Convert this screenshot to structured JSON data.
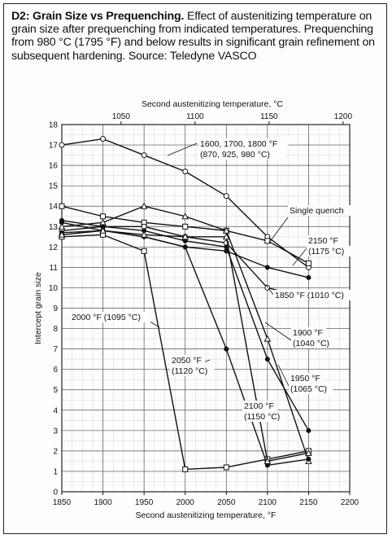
{
  "caption": {
    "lead": "D2: Grain Size vs Prequenching.",
    "body": "Effect of austenitizing temperature on grain size after prequenching from indicated temperatures. Prequenching from 980 °C (1795 °F) and below results in significant grain refinement on subsequent hardening. Source: Teledyne VASCO"
  },
  "chart_data": {
    "type": "line",
    "xlabel": "Second austenitizing temperature, °F",
    "ylabel": "Intercept grain size",
    "x2label": "Second austenitizing temperature, °C",
    "xlim": [
      1850,
      2200
    ],
    "ylim": [
      0,
      18
    ],
    "xticks": [
      1850,
      1900,
      1950,
      2000,
      2050,
      2100,
      2150,
      2200
    ],
    "yticks": [
      0,
      1,
      2,
      3,
      4,
      5,
      6,
      7,
      8,
      9,
      10,
      11,
      12,
      13,
      14,
      15,
      16,
      17,
      18
    ],
    "x2ticks": [
      1050,
      1100,
      1150,
      1200
    ],
    "grid": true,
    "series": [
      {
        "name": "1600, 1700, 1800 °F (870, 925, 980 °C)",
        "marker": "circle-open",
        "x": [
          1850,
          1900,
          1950,
          2000,
          2050,
          2100,
          2150
        ],
        "y": [
          17.0,
          17.3,
          16.5,
          15.7,
          14.5,
          12.5,
          11.0
        ]
      },
      {
        "name": "Single quench",
        "marker": "square-open",
        "x": [
          1850,
          1900,
          1950,
          2000,
          2050,
          2100,
          2150
        ],
        "y": [
          14.0,
          13.5,
          13.2,
          13.0,
          12.8,
          12.3,
          11.2
        ]
      },
      {
        "name": "2150 °F (1175 °C)",
        "marker": "circle-filled",
        "x": [
          1850,
          1900,
          1950,
          2000,
          2050,
          2100,
          2150
        ],
        "y": [
          13.2,
          12.8,
          12.5,
          12.0,
          11.8,
          11.0,
          10.5
        ]
      },
      {
        "name": "1850 °F (1010 °C)",
        "marker": "circle-open",
        "x": [
          1850,
          1900,
          1950,
          2000,
          2050,
          2100,
          2150
        ],
        "y": [
          12.8,
          13.0,
          13.0,
          12.5,
          12.2,
          10.0,
          9.5
        ]
      },
      {
        "name": "1900 °F (1040 °C)",
        "marker": "triangle-open",
        "x": [
          1850,
          1900,
          1950,
          2000,
          2050,
          2100,
          2150
        ],
        "y": [
          13.0,
          13.2,
          14.0,
          13.5,
          12.8,
          7.5,
          1.5
        ]
      },
      {
        "name": "1950 °F (1065 °C)",
        "marker": "circle-filled",
        "x": [
          1850,
          1900,
          1950,
          2000,
          2050,
          2100,
          2150
        ],
        "y": [
          13.3,
          13.0,
          12.8,
          12.3,
          12.0,
          6.5,
          3.0
        ]
      },
      {
        "name": "2000 °F (1095 °C)",
        "marker": "square-open",
        "x": [
          1850,
          1900,
          1950,
          2000,
          2050,
          2100,
          2150
        ],
        "y": [
          12.5,
          12.6,
          11.8,
          1.1,
          1.2,
          1.6,
          2.0
        ]
      },
      {
        "name": "2050 °F (1120 °C)",
        "marker": "circle-filled",
        "x": [
          1850,
          1900,
          1950,
          2000,
          2050,
          2100,
          2150
        ],
        "y": [
          12.7,
          12.8,
          12.5,
          12.0,
          7.0,
          1.3,
          1.6
        ]
      },
      {
        "name": "2100 °F (1150 °C)",
        "marker": "triangle-open",
        "x": [
          1850,
          1900,
          1950,
          2000,
          2050,
          2100,
          2150
        ],
        "y": [
          12.6,
          12.8,
          12.6,
          12.5,
          12.5,
          1.5,
          1.9
        ]
      }
    ],
    "annotations": [
      {
        "text": [
          "1600, 1700, 1800 °F",
          "(870, 925, 980 °C)"
        ]
      },
      {
        "text": [
          "Single quench"
        ]
      },
      {
        "text": [
          "2150 °F",
          "(1175 °C)"
        ]
      },
      {
        "text": [
          "1850 °F (1010 °C)"
        ]
      },
      {
        "text": [
          "1900 °F",
          "(1040 °C)"
        ]
      },
      {
        "text": [
          "1950 °F",
          "(1065 °C)"
        ]
      },
      {
        "text": [
          "2000 °F (1095 °C)"
        ]
      },
      {
        "text": [
          "2050 °F",
          "(1120 °C)"
        ]
      },
      {
        "text": [
          "2100 °F",
          "(1150 °C)"
        ]
      }
    ]
  }
}
